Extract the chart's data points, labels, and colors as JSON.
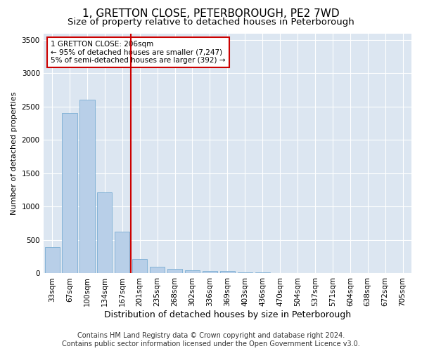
{
  "title": "1, GRETTON CLOSE, PETERBOROUGH, PE2 7WD",
  "subtitle": "Size of property relative to detached houses in Peterborough",
  "xlabel": "Distribution of detached houses by size in Peterborough",
  "ylabel": "Number of detached properties",
  "footer_line1": "Contains HM Land Registry data © Crown copyright and database right 2024.",
  "footer_line2": "Contains public sector information licensed under the Open Government Licence v3.0.",
  "categories": [
    "33sqm",
    "67sqm",
    "100sqm",
    "134sqm",
    "167sqm",
    "201sqm",
    "235sqm",
    "268sqm",
    "302sqm",
    "336sqm",
    "369sqm",
    "403sqm",
    "436sqm",
    "470sqm",
    "504sqm",
    "537sqm",
    "571sqm",
    "604sqm",
    "638sqm",
    "672sqm",
    "705sqm"
  ],
  "values": [
    390,
    2400,
    2600,
    1220,
    630,
    220,
    100,
    65,
    50,
    40,
    35,
    20,
    15,
    10,
    8,
    6,
    5,
    4,
    3,
    2,
    1
  ],
  "bar_color": "#b8cfe8",
  "bar_edge_color": "#7aadd4",
  "vline_index": 5,
  "vline_color": "#cc0000",
  "annotation_line1": "1 GRETTON CLOSE: 206sqm",
  "annotation_line2": "← 95% of detached houses are smaller (7,247)",
  "annotation_line3": "5% of semi-detached houses are larger (392) →",
  "annotation_box_facecolor": "#ffffff",
  "annotation_box_edgecolor": "#cc0000",
  "ylim": [
    0,
    3600
  ],
  "yticks": [
    0,
    500,
    1000,
    1500,
    2000,
    2500,
    3000,
    3500
  ],
  "plot_bg_color": "#dce6f1",
  "grid_color": "#ffffff",
  "title_fontsize": 11,
  "subtitle_fontsize": 9.5,
  "xlabel_fontsize": 9,
  "ylabel_fontsize": 8,
  "tick_fontsize": 7.5,
  "footer_fontsize": 7
}
